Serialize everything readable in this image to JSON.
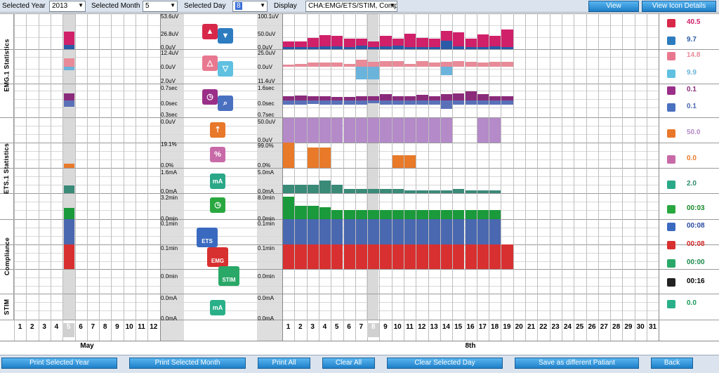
{
  "toolbar": {
    "year_label": "Selected Year",
    "year_value": "2013",
    "month_label": "Selected Month",
    "month_value": "5",
    "day_label": "Selected Day",
    "day_value": "8",
    "display_label": "Display",
    "display_value": "CHA:EMG/ETS/STIM, Comp",
    "view_label": "View",
    "view_icon_label": "View Icon Details"
  },
  "sections": {
    "emg": "EMG.1 Statistics",
    "ets": "ETS.1 Statistics",
    "comp": "Compliance",
    "stim": "STIM"
  },
  "scales_left": [
    "53.6uV",
    "26.8uV",
    "0.0uV",
    "12.4uV",
    "0.0uV",
    "2.0uV",
    "0.7sec",
    "0.0sec",
    "0.3sec",
    "0.0uV",
    "19.1%",
    "0.0%",
    "1.6mA",
    "0.0mA",
    "3.2min",
    "0.0min",
    "0.1min",
    "0.1min",
    "0.0min",
    "0.0mA",
    "0.0mA"
  ],
  "scales_right": [
    "100.1uV",
    "50.0uV",
    "0.0uV",
    "25.0uV",
    "0.0uV",
    "11.4uV",
    "1.6sec",
    "0.0sec",
    "0.7sec",
    "50.0uV",
    "0.0uV",
    "99.0%",
    "0.0%",
    "5.0mA",
    "0.0mA",
    "8.0min",
    "0.0min",
    "0.1min",
    "0.1min",
    "0.0min",
    "0.0mA",
    "0.0mA"
  ],
  "icons": {
    "percent": "%",
    "ma": "mA",
    "ets": "ETS",
    "emg": "EMG",
    "stim": "STIM",
    "total": "TOTAL"
  },
  "right_values": [
    {
      "value": "40.5",
      "color": "#d0206a",
      "icon": "arrow-up-icon",
      "bg": "#d8284a"
    },
    {
      "value": "9.7",
      "color": "#2a5aa8",
      "icon": "arrow-down-icon",
      "bg": "#2d7cc0"
    },
    {
      "value": "14.8",
      "color": "#e88a98",
      "icon": "triangle-up-icon",
      "bg": "#e87890"
    },
    {
      "value": "9.9",
      "color": "#6ab4dc",
      "icon": "triangle-down-icon",
      "bg": "#5fc0e0"
    },
    {
      "value": "0.1",
      "color": "#8a2a7a",
      "icon": "clock-icon",
      "bg": "#9a2e88"
    },
    {
      "value": "0.1",
      "color": "#4a68b0",
      "icon": "search-clock-icon",
      "bg": "#4a70c0"
    },
    {
      "value": "50.0",
      "color": "#b48ac8",
      "icon": "ets-up-icon",
      "bg": "#e8782a"
    },
    {
      "value": "0.0",
      "color": "#e87a2a",
      "icon": "percent-icon",
      "bg": "#c86aa8"
    },
    {
      "value": "2.0",
      "color": "#2a8a6a",
      "icon": "ma-wave-icon",
      "bg": "#2aa888"
    },
    {
      "value": "00:03",
      "color": "#1a8a2a",
      "icon": "stim-clock-icon",
      "bg": "#2aa840"
    },
    {
      "value": "00:08",
      "color": "#2a4aa0",
      "icon": "ets-clock-icon",
      "bg": "#3a6ac0"
    },
    {
      "value": "00:08",
      "color": "#d02828",
      "icon": "emg-clock-icon",
      "bg": "#d83030"
    },
    {
      "value": "00:00",
      "color": "#1a8a4a",
      "icon": "stim-time-icon",
      "bg": "#2aa868"
    },
    {
      "value": "00:16",
      "color": "#000000",
      "icon": "total-clock-icon",
      "bg": "#222222"
    },
    {
      "value": "0.0",
      "color": "#1a9a5a",
      "icon": "stim-ma-icon",
      "bg": "#2ab088"
    }
  ],
  "month_axis": {
    "days": [
      "1",
      "2",
      "3",
      "4",
      "5",
      "6",
      "7",
      "8",
      "9",
      "10",
      "11",
      "12"
    ],
    "label": "May"
  },
  "day_axis": {
    "days": [
      "1",
      "2",
      "3",
      "4",
      "5",
      "6",
      "7",
      "8",
      "9",
      "10",
      "11",
      "12",
      "13",
      "14",
      "15",
      "16",
      "17",
      "18",
      "19",
      "20",
      "21",
      "22",
      "23",
      "24",
      "25",
      "26",
      "27",
      "28",
      "29",
      "30",
      "31"
    ],
    "label": "8th"
  },
  "footer": {
    "print_year": "Print Selected Year",
    "print_month": "Print Selected Month",
    "print_all": "Print All",
    "clear_all": "Clear All",
    "clear_day": "Clear Selected Day",
    "save_diff": "Save as different Patiant",
    "back": "Back"
  },
  "colors": {
    "emg_mag": "#d0206a",
    "emg_blue": "#2a5aa8",
    "tri_pink": "#e88a98",
    "tri_cyan": "#6ab4dc",
    "purple": "#8a2a7a",
    "slate": "#5a70b8",
    "lavender": "#b48ac8",
    "orange": "#e87a2a",
    "teal": "#3a8a78",
    "green": "#1a9a3a",
    "ets_blue": "#4a68b0",
    "emg_red": "#d83030"
  },
  "chart_data": {
    "type": "bar",
    "x": [
      1,
      2,
      3,
      4,
      5,
      6,
      7,
      8,
      9,
      10,
      11,
      12,
      13,
      14,
      15,
      16,
      17,
      18,
      19
    ],
    "series": [
      {
        "values": [
          22,
          22,
          32,
          40,
          38,
          30,
          30,
          22,
          38,
          30,
          44,
          32,
          30,
          52,
          48,
          30,
          42,
          38,
          56
        ]
      },
      {
        "values": [
          6,
          6,
          6,
          8,
          8,
          6,
          10,
          6,
          8,
          10,
          6,
          6,
          6,
          24,
          8,
          6,
          6,
          8,
          6
        ]
      },
      {
        "values": [
          4,
          6,
          9,
          8,
          9,
          6,
          14,
          10,
          12,
          11,
          6,
          11,
          8,
          10,
          12,
          10,
          8,
          10,
          10
        ]
      },
      {
        "values": [
          0,
          0,
          0,
          0,
          0,
          0,
          -6,
          -6,
          0,
          0,
          0,
          0,
          0,
          -4,
          0,
          0,
          0,
          0,
          0
        ]
      },
      {
        "values": [
          0.3,
          0.35,
          0.3,
          0.3,
          0.25,
          0.25,
          0.3,
          0.3,
          0.45,
          0.3,
          0.3,
          0.4,
          0.3,
          0.45,
          0.5,
          0.65,
          0.45,
          0.3,
          0.3
        ]
      },
      {
        "values": [
          -0.3,
          -0.3,
          -0.25,
          -0.3,
          -0.3,
          -0.3,
          -0.3,
          -0.2,
          -0.3,
          -0.3,
          -0.3,
          -0.3,
          -0.3,
          -0.6,
          -0.3,
          -0.3,
          -0.3,
          -0.3,
          -0.3
        ]
      },
      {
        "values": [
          50,
          50,
          50,
          50,
          50,
          50,
          50,
          50,
          50,
          50,
          50,
          50,
          50,
          50,
          0,
          0,
          50,
          50,
          0
        ]
      },
      {
        "values": [
          99,
          0,
          80,
          80,
          0,
          0,
          0,
          0,
          0,
          50,
          50,
          0,
          0,
          0,
          0,
          0,
          0,
          0,
          0
        ]
      },
      {
        "values": [
          2.0,
          2.0,
          2.0,
          3.0,
          2.0,
          1.0,
          1.0,
          1.0,
          1.0,
          1.0,
          0.6,
          0.6,
          0.6,
          0.6,
          1.0,
          0.6,
          0.6,
          0.6,
          0
        ]
      },
      {
        "values": [
          7.5,
          4.5,
          4.5,
          4.0,
          3.0,
          3.0,
          3.0,
          3.0,
          3.0,
          3.0,
          3.0,
          3.0,
          3.0,
          3.0,
          3.0,
          3.0,
          3.0,
          3.0,
          0
        ]
      },
      {
        "values": [
          1,
          1,
          1,
          1,
          1,
          1,
          1,
          1,
          1,
          1,
          1,
          1,
          1,
          1,
          1,
          1,
          1,
          1,
          0
        ]
      },
      {
        "values": [
          1,
          1,
          1,
          1,
          1,
          1,
          1,
          1,
          1,
          1,
          1,
          1,
          1,
          1,
          1,
          1,
          1,
          1,
          1
        ]
      }
    ]
  }
}
